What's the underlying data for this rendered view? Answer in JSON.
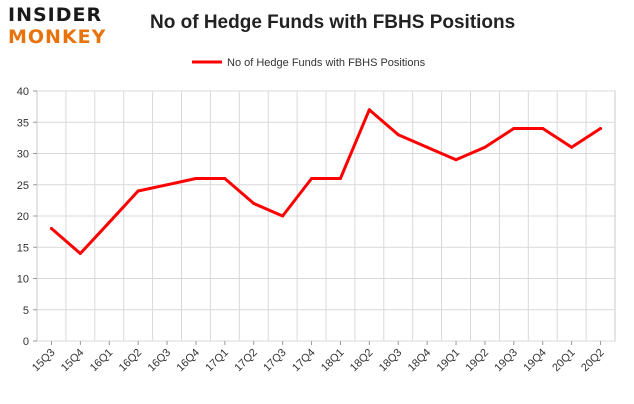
{
  "brand": {
    "line1": "INSIDER",
    "line2": "MONKEY"
  },
  "chart_data": {
    "type": "line",
    "title": "No of Hedge Funds with FBHS Positions",
    "xlabel": "",
    "ylabel": "",
    "categories": [
      "15Q3",
      "15Q4",
      "16Q1",
      "16Q2",
      "16Q3",
      "16Q4",
      "17Q1",
      "17Q2",
      "17Q3",
      "17Q4",
      "18Q1",
      "18Q2",
      "18Q3",
      "18Q4",
      "19Q1",
      "19Q2",
      "19Q3",
      "19Q4",
      "20Q1",
      "20Q2"
    ],
    "series": [
      {
        "name": "No of Hedge Funds with FBHS Positions",
        "values": [
          18,
          14,
          19,
          24,
          25,
          26,
          26,
          22,
          20,
          26,
          26,
          37,
          33,
          31,
          29,
          31,
          34,
          34,
          31,
          34
        ],
        "color": "#ff0000"
      }
    ],
    "ylim": [
      0,
      40
    ],
    "yticks": [
      0,
      5,
      10,
      15,
      20,
      25,
      30,
      35,
      40
    ],
    "grid": true,
    "legend": "top-center"
  }
}
